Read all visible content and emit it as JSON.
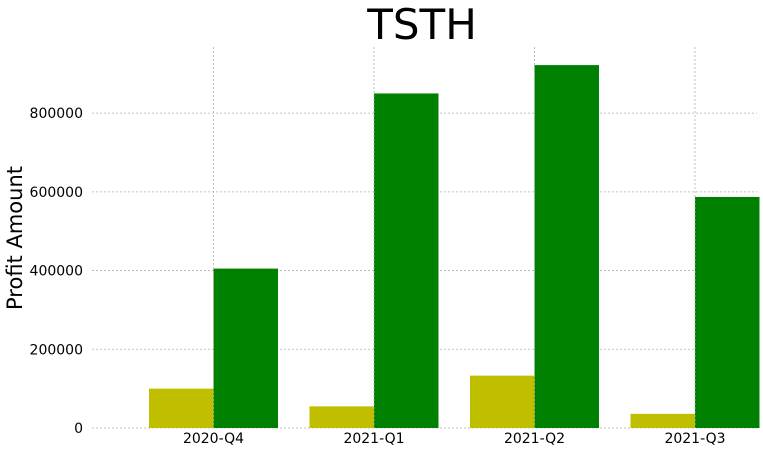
{
  "chart_data": {
    "type": "bar",
    "title": "TSTH",
    "ylabel": "Profit Amount",
    "xlabel": "",
    "categories": [
      "2020-Q4",
      "2021-Q1",
      "2021-Q2",
      "2021-Q3"
    ],
    "series": [
      {
        "values": [
          100000,
          55000,
          133000,
          36000
        ],
        "color": "#bfbf00"
      },
      {
        "values": [
          405000,
          850000,
          922000,
          587000
        ],
        "color": "#008000"
      }
    ],
    "yticks": [
      0,
      200000,
      400000,
      600000,
      800000
    ],
    "ylim": [
      0,
      968000
    ],
    "grid": true
  }
}
